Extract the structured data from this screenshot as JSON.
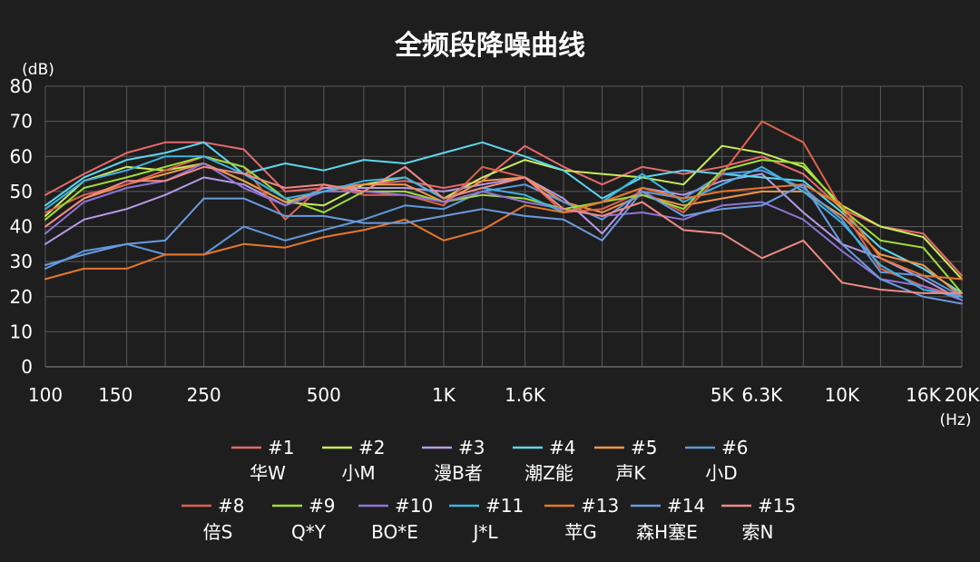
{
  "chart_data": {
    "type": "line",
    "title": "全频段降噪曲线",
    "y_unit": "(dB)",
    "x_unit": "(Hz)",
    "ylim": [
      0,
      80
    ],
    "y_ticks": [
      "0",
      "10",
      "20",
      "30",
      "40",
      "50",
      "60",
      "70",
      "80"
    ],
    "x_scale": "log",
    "x_ticks": [
      {
        "value": 100,
        "label": "100"
      },
      {
        "value": 150,
        "label": "150"
      },
      {
        "value": 250,
        "label": "250"
      },
      {
        "value": 500,
        "label": "500"
      },
      {
        "value": 1000,
        "label": "1K"
      },
      {
        "value": 1600,
        "label": "1.6K"
      },
      {
        "value": 5000,
        "label": "5K"
      },
      {
        "value": 6300,
        "label": "6.3K"
      },
      {
        "value": 10000,
        "label": "10K"
      },
      {
        "value": 16000,
        "label": "16K"
      },
      {
        "value": 20000,
        "label": "20K"
      }
    ],
    "x": [
      100,
      125,
      160,
      200,
      250,
      315,
      400,
      500,
      630,
      800,
      1000,
      1250,
      1600,
      2000,
      2500,
      3150,
      4000,
      5000,
      6300,
      8000,
      10000,
      12500,
      16000,
      20000
    ],
    "grid": true,
    "legend_position": "bottom",
    "series": [
      {
        "name": "#1",
        "label": "华W",
        "color": "#e8696a",
        "values": [
          49,
          55,
          61,
          64,
          64,
          62,
          50,
          51,
          52,
          53,
          51,
          53,
          63,
          57,
          52,
          57,
          55,
          57,
          60,
          55,
          45,
          40,
          38,
          26
        ]
      },
      {
        "name": "#2",
        "label": "小M",
        "color": "#c7ed5a",
        "values": [
          43,
          53,
          57,
          56,
          58,
          53,
          47,
          46,
          52,
          54,
          48,
          54,
          59,
          56,
          55,
          54,
          52,
          63,
          61,
          57,
          46,
          40,
          37,
          25
        ]
      },
      {
        "name": "#3",
        "label": "漫B者",
        "color": "#b69ae8",
        "values": [
          35,
          42,
          45,
          49,
          54,
          52,
          46,
          51,
          51,
          51,
          50,
          52,
          54,
          48,
          38,
          51,
          49,
          53,
          55,
          44,
          35,
          31,
          25,
          19
        ]
      },
      {
        "name": "#4",
        "label": "潮Z能",
        "color": "#5ed6ef",
        "values": [
          46,
          54,
          59,
          61,
          64,
          55,
          58,
          56,
          59,
          58,
          61,
          64,
          60,
          56,
          48,
          54,
          56,
          55,
          54,
          53,
          44,
          34,
          28,
          21
        ]
      },
      {
        "name": "#5",
        "label": "声K",
        "color": "#f0964a",
        "values": [
          40,
          48,
          52,
          55,
          58,
          53,
          47,
          50,
          52,
          52,
          47,
          53,
          54,
          47,
          44,
          49,
          46,
          48,
          50,
          50,
          43,
          32,
          29,
          20
        ]
      },
      {
        "name": "#6",
        "label": "小D",
        "color": "#5f99dc",
        "values": [
          28,
          33,
          35,
          32,
          32,
          40,
          36,
          39,
          42,
          46,
          45,
          50,
          52,
          47,
          42,
          50,
          48,
          55,
          56,
          51,
          42,
          27,
          26,
          20
        ]
      },
      {
        "name": "#8",
        "label": "倍S",
        "color": "#e0624e",
        "values": [
          44,
          49,
          52,
          56,
          60,
          57,
          42,
          52,
          49,
          49,
          46,
          57,
          54,
          44,
          45,
          50,
          44,
          55,
          70,
          64,
          45,
          28,
          23,
          20
        ]
      },
      {
        "name": "#9",
        "label": "Q*Y",
        "color": "#9edd38",
        "values": [
          42,
          51,
          54,
          57,
          60,
          57,
          48,
          44,
          50,
          50,
          47,
          49,
          48,
          45,
          47,
          49,
          45,
          56,
          59,
          58,
          45,
          36,
          34,
          21
        ]
      },
      {
        "name": "#10",
        "label": "BO*E",
        "color": "#8f74d8",
        "values": [
          38,
          47,
          51,
          53,
          58,
          51,
          46,
          50,
          50,
          49,
          47,
          50,
          47,
          45,
          43,
          44,
          42,
          46,
          47,
          42,
          33,
          25,
          23,
          19
        ]
      },
      {
        "name": "#11",
        "label": "J*L",
        "color": "#3fb4e4",
        "values": [
          45,
          53,
          56,
          60,
          60,
          55,
          48,
          50,
          53,
          54,
          48,
          51,
          49,
          44,
          47,
          55,
          47,
          52,
          57,
          50,
          41,
          29,
          22,
          20
        ]
      },
      {
        "name": "#13",
        "label": "苹G",
        "color": "#e7772c",
        "values": [
          25,
          28,
          28,
          32,
          32,
          35,
          34,
          37,
          39,
          42,
          36,
          39,
          46,
          44,
          47,
          51,
          48,
          50,
          51,
          52,
          46,
          31,
          26,
          25
        ]
      },
      {
        "name": "#14",
        "label": "森H塞E",
        "color": "#6a9be0",
        "values": [
          29,
          32,
          35,
          36,
          48,
          48,
          43,
          43,
          41,
          41,
          43,
          45,
          43,
          42,
          36,
          50,
          43,
          45,
          46,
          52,
          35,
          25,
          20,
          18
        ]
      },
      {
        "name": "#15",
        "label": "索N",
        "color": "#f08a84",
        "values": [
          40,
          48,
          53,
          53,
          57,
          55,
          51,
          52,
          50,
          57,
          48,
          51,
          54,
          45,
          43,
          47,
          39,
          38,
          31,
          36,
          24,
          22,
          21,
          21
        ]
      }
    ]
  }
}
